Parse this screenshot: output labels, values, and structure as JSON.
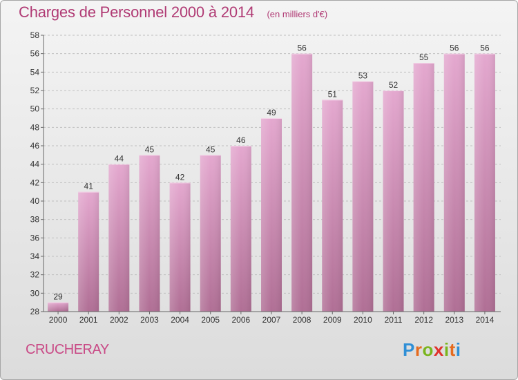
{
  "header": {
    "title": "Charges de Personnel 2000 à 2014",
    "subtitle": "(en milliers d'€)"
  },
  "footer": {
    "commune": "CRUCHERAY",
    "logo": "Proxiti",
    "logo_colors": [
      "#2f8fd6",
      "#e56b1f",
      "#7ab51d",
      "#e0322c",
      "#7ab51d",
      "#e56b1f",
      "#2f8fd6"
    ]
  },
  "colors": {
    "title": "#b03a74",
    "bar_top": "#e4a8cf",
    "bar_bottom": "#b06f95",
    "grid": "#bfbfbf"
  },
  "chart_data": {
    "type": "bar",
    "title": "Charges de Personnel 2000 à 2014",
    "subtitle": "(en milliers d'€)",
    "categories": [
      "2000",
      "2001",
      "2002",
      "2003",
      "2004",
      "2005",
      "2006",
      "2007",
      "2008",
      "2009",
      "2010",
      "2011",
      "2012",
      "2013",
      "2014"
    ],
    "values": [
      29,
      41,
      44,
      45,
      42,
      45,
      46,
      49,
      56,
      51,
      53,
      52,
      55,
      56,
      56
    ],
    "ylim": [
      28,
      58
    ],
    "yticks": [
      28,
      30,
      32,
      34,
      36,
      38,
      40,
      42,
      44,
      46,
      48,
      50,
      52,
      54,
      56,
      58
    ],
    "grid": true,
    "data_labels": true
  }
}
